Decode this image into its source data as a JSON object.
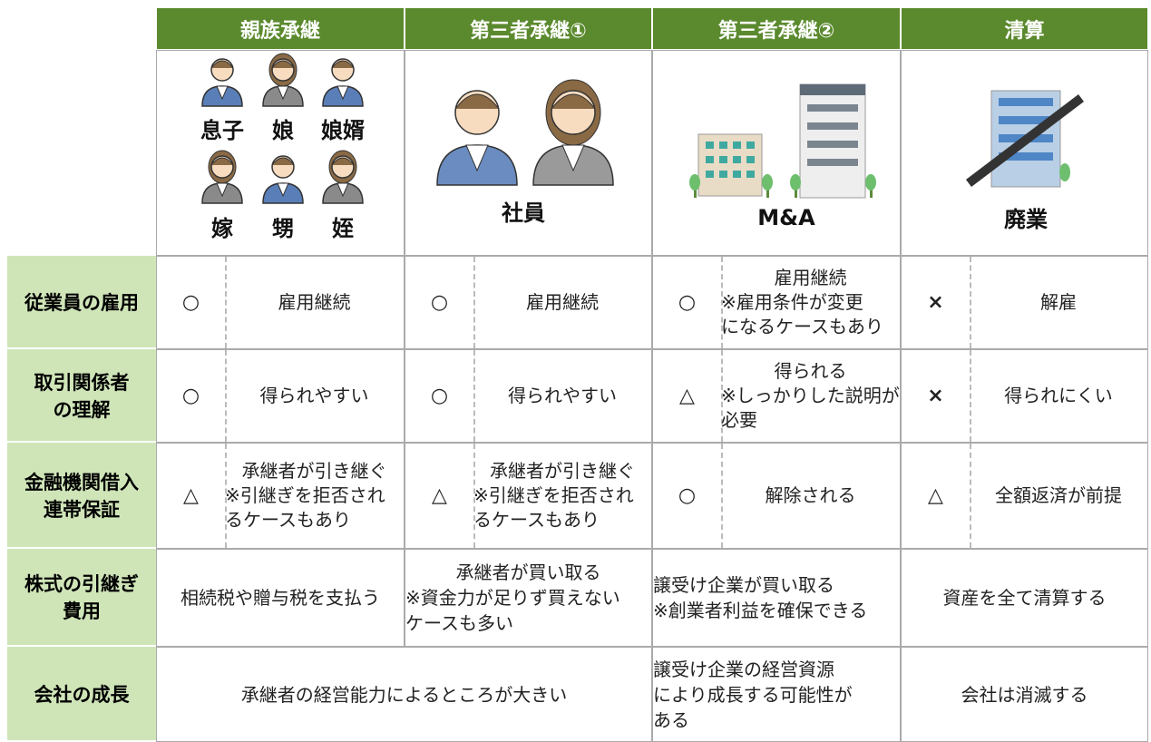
{
  "header": {
    "columns": [
      "親族承継",
      "第三者承継①",
      "第三者承継②",
      "清算"
    ]
  },
  "images": [
    {
      "labels": [
        "息子",
        "娘",
        "娘婿",
        "嫁",
        "甥",
        "姪"
      ]
    },
    {
      "labels": [
        "社員"
      ]
    },
    {
      "labels": [
        "M&A"
      ]
    },
    {
      "labels": [
        "廃業"
      ]
    }
  ],
  "rows": [
    {
      "label": [
        "従業員の雇用"
      ],
      "cells": [
        {
          "symbol": "○",
          "lines": [
            "雇用継続"
          ]
        },
        {
          "symbol": "○",
          "lines": [
            "雇用継続"
          ]
        },
        {
          "symbol": "○",
          "lines": [
            "雇用継続",
            "※雇用条件が変更",
            "になるケースもあり"
          ]
        },
        {
          "symbol": "×",
          "lines": [
            "解雇"
          ]
        }
      ]
    },
    {
      "label": [
        "取引関係者",
        "の理解"
      ],
      "cells": [
        {
          "symbol": "○",
          "lines": [
            "得られやすい"
          ]
        },
        {
          "symbol": "○",
          "lines": [
            "得られやすい"
          ]
        },
        {
          "symbol": "△",
          "lines": [
            "得られる",
            "※しっかりした説明が",
            "必要"
          ]
        },
        {
          "symbol": "×",
          "lines": [
            "得られにくい"
          ]
        }
      ]
    },
    {
      "label": [
        "金融機関借入",
        "連帯保証"
      ],
      "cells": [
        {
          "symbol": "△",
          "lines": [
            "承継者が引き継ぐ",
            "※引継ぎを拒否され",
            "るケースもあり"
          ]
        },
        {
          "symbol": "△",
          "lines": [
            "承継者が引き継ぐ",
            "※引継ぎを拒否され",
            "るケースもあり"
          ]
        },
        {
          "symbol": "○",
          "lines": [
            "解除される"
          ]
        },
        {
          "symbol": "△",
          "lines": [
            "全額返済が前提"
          ]
        }
      ]
    },
    {
      "label": [
        "株式の引継ぎ",
        "費用"
      ],
      "cells": [
        {
          "span": 1,
          "lines": [
            "相続税や贈与税を支払う"
          ]
        },
        {
          "span": 1,
          "lines": [
            "承継者が買い取る",
            "※資金力が足りず買えない",
            "ケースも多い"
          ]
        },
        {
          "span": 1,
          "lines": [
            "譲受け企業が買い取る",
            "※創業者利益を確保できる"
          ]
        },
        {
          "span": 1,
          "lines": [
            "資産を全て清算する"
          ]
        }
      ]
    },
    {
      "label": [
        "会社の成長"
      ],
      "cells": [
        {
          "span": 2,
          "lines": [
            "承継者の経営能力によるところが大きい"
          ]
        },
        {
          "span": 1,
          "lines": [
            "譲受け企業の経営資源",
            "により成長する可能性が",
            "ある"
          ]
        },
        {
          "span": 1,
          "lines": [
            "会社は消滅する"
          ]
        }
      ]
    }
  ]
}
